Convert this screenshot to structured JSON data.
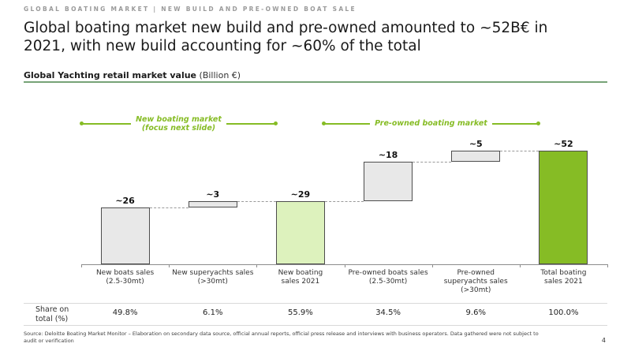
{
  "header": {
    "kicker": "GLOBAL BOATING MARKET | NEW BUILD AND PRE-OWNED BOAT SALE",
    "title": "Global boating market new build and pre-owned amounted to ~52B€ in 2021, with new build accounting for ~60% of the total"
  },
  "chart_header": {
    "title": "Global Yachting retail market value",
    "unit_suffix": "(Billion €)"
  },
  "brackets": [
    {
      "lines": [
        "New boating market",
        "(focus next slide)"
      ]
    },
    {
      "lines": [
        "Pre-owned boating market"
      ]
    }
  ],
  "chart_data": {
    "type": "bar",
    "subtype": "waterfall",
    "title": "Global Yachting retail market value (Billion €)",
    "ylim": [
      0,
      52
    ],
    "bars": [
      {
        "category_lines": [
          "New boats sales",
          "(2.5-30mt)"
        ],
        "value_label": "~26",
        "start": 0,
        "end": 26,
        "share_of_total": "49.8%",
        "color": "gray"
      },
      {
        "category_lines": [
          "New superyachts sales",
          "(>30mt)"
        ],
        "value_label": "~3",
        "start": 26,
        "end": 29,
        "share_of_total": "6.1%",
        "color": "gray"
      },
      {
        "category_lines": [
          "New boating",
          "sales 2021"
        ],
        "value_label": "~29",
        "start": 0,
        "end": 29,
        "share_of_total": "55.9%",
        "color": "light_green"
      },
      {
        "category_lines": [
          "Pre-owned boats sales",
          "(2.5-30mt)"
        ],
        "value_label": "~18",
        "start": 29,
        "end": 47,
        "share_of_total": "34.5%",
        "color": "gray"
      },
      {
        "category_lines": [
          "Pre-owned",
          "superyachts sales",
          "(>30mt)"
        ],
        "value_label": "~5",
        "start": 47,
        "end": 52,
        "share_of_total": "9.6%",
        "color": "gray"
      },
      {
        "category_lines": [
          "Total boating",
          "sales 2021"
        ],
        "value_label": "~52",
        "start": 0,
        "end": 52,
        "share_of_total": "100.0%",
        "color": "dark_green"
      }
    ]
  },
  "share_row": {
    "label_lines": [
      "Share on",
      "total (%)"
    ]
  },
  "colors": {
    "accent_green": "#86bc25",
    "header_rule_green": "#76a377",
    "bar_gray": "#e8e8e8",
    "bar_light_green": "#ddf2bd",
    "bar_dark_green": "#86bc25",
    "bar_border": "#4d4d4d"
  },
  "footer": {
    "source": "Source: Deloitte Boating Market Monitor – Elaboration on secondary data source, official annual reports, official press release and interviews with business operators. Data gathered were not subject to audit or verification",
    "page_number": "4"
  }
}
